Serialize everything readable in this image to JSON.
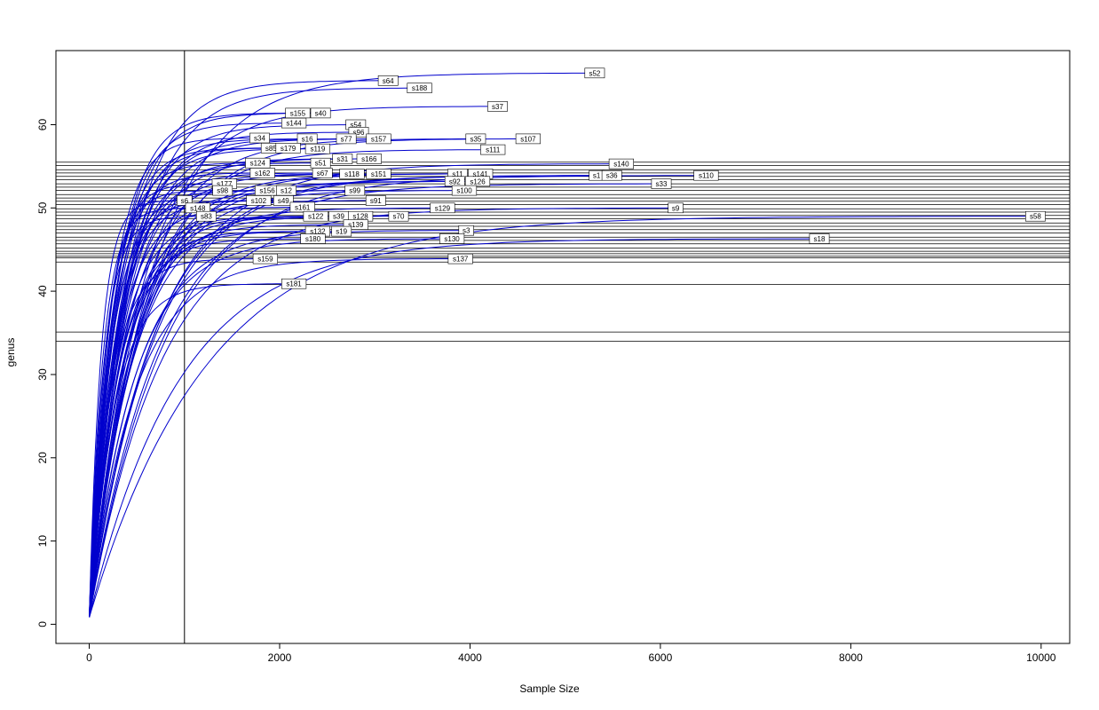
{
  "chart_data": {
    "type": "line",
    "title": "",
    "xlabel": "Sample Size",
    "ylabel": "genus",
    "xlim": [
      0,
      10000
    ],
    "ylim": [
      0,
      66
    ],
    "x_ticks": [
      0,
      2000,
      4000,
      6000,
      8000,
      10000
    ],
    "y_ticks": [
      0,
      10,
      20,
      30,
      40,
      50,
      60
    ],
    "grid": false,
    "legend": "none",
    "curve_color": "#0000CD",
    "line_color": "#000000",
    "vline_x": 1000,
    "hlines": [
      55.5,
      55.1,
      54.6,
      54.2,
      53.8,
      53.4,
      52.9,
      52.5,
      52.1,
      51.6,
      51.2,
      50.8,
      50.4,
      49.9,
      49.5,
      49.1,
      48.7,
      48.2,
      47.8,
      47.4,
      47.0,
      46.5,
      46.1,
      45.7,
      45.2,
      44.8,
      44.5,
      44.2,
      44.0,
      43.5,
      40.8,
      35.1,
      34.0
    ],
    "series": [
      {
        "name": "s52",
        "x": 5310,
        "y": 66.2
      },
      {
        "name": "s64",
        "x": 3140,
        "y": 65.3
      },
      {
        "name": "s188",
        "x": 3470,
        "y": 64.4
      },
      {
        "name": "s37",
        "x": 4290,
        "y": 62.2
      },
      {
        "name": "s155",
        "x": 2190,
        "y": 61.4
      },
      {
        "name": "s40",
        "x": 2430,
        "y": 61.4
      },
      {
        "name": "s144",
        "x": 2150,
        "y": 60.2
      },
      {
        "name": "s54",
        "x": 2800,
        "y": 60.0
      },
      {
        "name": "s96",
        "x": 2830,
        "y": 59.1
      },
      {
        "name": "s34",
        "x": 1790,
        "y": 58.4
      },
      {
        "name": "s16",
        "x": 2290,
        "y": 58.3
      },
      {
        "name": "s77",
        "x": 2700,
        "y": 58.3
      },
      {
        "name": "s157",
        "x": 3040,
        "y": 58.3
      },
      {
        "name": "s35",
        "x": 4060,
        "y": 58.3
      },
      {
        "name": "s107",
        "x": 4610,
        "y": 58.3
      },
      {
        "name": "s85",
        "x": 1910,
        "y": 57.2
      },
      {
        "name": "s179",
        "x": 2090,
        "y": 57.2
      },
      {
        "name": "s119",
        "x": 2400,
        "y": 57.1
      },
      {
        "name": "s111",
        "x": 4240,
        "y": 57.0
      },
      {
        "name": "s31",
        "x": 2660,
        "y": 55.9
      },
      {
        "name": "s166",
        "x": 2940,
        "y": 55.9
      },
      {
        "name": "s124",
        "x": 1770,
        "y": 55.4
      },
      {
        "name": "s51",
        "x": 2430,
        "y": 55.4
      },
      {
        "name": "s140",
        "x": 5590,
        "y": 55.3
      },
      {
        "name": "s162",
        "x": 1820,
        "y": 54.2
      },
      {
        "name": "s67",
        "x": 2450,
        "y": 54.2
      },
      {
        "name": "s118",
        "x": 2760,
        "y": 54.1
      },
      {
        "name": "s151",
        "x": 3040,
        "y": 54.1
      },
      {
        "name": "s11",
        "x": 3870,
        "y": 54.1
      },
      {
        "name": "s141",
        "x": 4110,
        "y": 54.1
      },
      {
        "name": "s1",
        "x": 5330,
        "y": 53.9
      },
      {
        "name": "s36",
        "x": 5490,
        "y": 53.9
      },
      {
        "name": "s110",
        "x": 6480,
        "y": 53.9
      },
      {
        "name": "s92",
        "x": 3840,
        "y": 53.2
      },
      {
        "name": "s126",
        "x": 4080,
        "y": 53.2
      },
      {
        "name": "s177",
        "x": 1420,
        "y": 52.9
      },
      {
        "name": "s33",
        "x": 6010,
        "y": 52.9
      },
      {
        "name": "s98",
        "x": 1400,
        "y": 52.1
      },
      {
        "name": "s156",
        "x": 1870,
        "y": 52.1
      },
      {
        "name": "s12",
        "x": 2070,
        "y": 52.1
      },
      {
        "name": "s99",
        "x": 2790,
        "y": 52.1
      },
      {
        "name": "s100",
        "x": 3940,
        "y": 52.1
      },
      {
        "name": "s6",
        "x": 1000,
        "y": 50.9
      },
      {
        "name": "s102",
        "x": 1780,
        "y": 50.9
      },
      {
        "name": "s49",
        "x": 2040,
        "y": 50.9
      },
      {
        "name": "s91",
        "x": 3010,
        "y": 50.9
      },
      {
        "name": "s148",
        "x": 1140,
        "y": 50.0
      },
      {
        "name": "s161",
        "x": 2240,
        "y": 50.1
      },
      {
        "name": "s129",
        "x": 3710,
        "y": 50.0
      },
      {
        "name": "s9",
        "x": 6160,
        "y": 50.0
      },
      {
        "name": "s83",
        "x": 1230,
        "y": 49.0
      },
      {
        "name": "s122",
        "x": 2380,
        "y": 49.0
      },
      {
        "name": "s39",
        "x": 2620,
        "y": 49.0
      },
      {
        "name": "s128",
        "x": 2850,
        "y": 49.0
      },
      {
        "name": "s70",
        "x": 3250,
        "y": 49.0
      },
      {
        "name": "s58",
        "x": 9940,
        "y": 49.0
      },
      {
        "name": "s139",
        "x": 2800,
        "y": 48.0
      },
      {
        "name": "s132",
        "x": 2400,
        "y": 47.2
      },
      {
        "name": "s19",
        "x": 2650,
        "y": 47.2
      },
      {
        "name": "s3",
        "x": 3960,
        "y": 47.3
      },
      {
        "name": "s180",
        "x": 2350,
        "y": 46.3
      },
      {
        "name": "s130",
        "x": 3810,
        "y": 46.3
      },
      {
        "name": "s18",
        "x": 7670,
        "y": 46.3
      },
      {
        "name": "s159",
        "x": 1850,
        "y": 43.9
      },
      {
        "name": "s137",
        "x": 3900,
        "y": 43.9
      },
      {
        "name": "s181",
        "x": 2150,
        "y": 40.9
      }
    ]
  }
}
